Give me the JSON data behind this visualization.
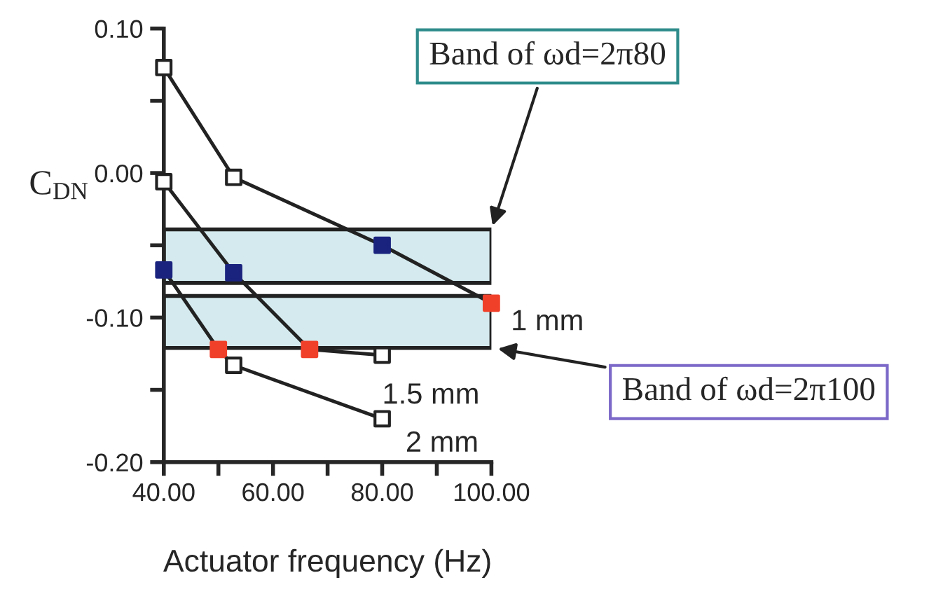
{
  "chart_data": {
    "type": "line",
    "xlabel": "Actuator frequency (Hz)",
    "ylabel": "C$_{DN}$",
    "xlim": [
      40,
      100
    ],
    "ylim": [
      -0.2,
      0.1
    ],
    "xticks": [
      {
        "value": 40,
        "label": "40.00"
      },
      {
        "value": 50,
        "label": null
      },
      {
        "value": 60,
        "label": "60.00"
      },
      {
        "value": 70,
        "label": null
      },
      {
        "value": 80,
        "label": "80.00"
      },
      {
        "value": 90,
        "label": null
      },
      {
        "value": 100,
        "label": "100.00"
      }
    ],
    "yticks": [
      {
        "value": -0.2,
        "label": "-0.20"
      },
      {
        "value": -0.15,
        "label": null
      },
      {
        "value": -0.1,
        "label": "-0.10"
      },
      {
        "value": -0.05,
        "label": null
      },
      {
        "value": 0,
        "label": "0.00"
      },
      {
        "value": 0.05,
        "label": null
      },
      {
        "value": 0.1,
        "label": "0.10"
      }
    ],
    "marker": "square",
    "line_style": "solid",
    "grid": false,
    "legend": false,
    "series": [
      {
        "name": "1 mm",
        "color": "#222222",
        "x": [
          40,
          52.8,
          80,
          100
        ],
        "values": [
          0.073,
          -0.003,
          -0.05,
          -0.09
        ],
        "colors": [
          "#ffffff",
          "#ffffff",
          "#1a237e",
          "#f0402a"
        ]
      },
      {
        "name": "1.5 mm",
        "color": "#222222",
        "x": [
          40,
          52.8,
          66.7,
          80
        ],
        "values": [
          -0.006,
          -0.069,
          -0.122,
          -0.126
        ],
        "colors": [
          "#ffffff",
          "#1a237e",
          "#f0402a",
          "#ffffff"
        ]
      },
      {
        "name": "2 mm",
        "color": "#222222",
        "x": [
          40,
          50,
          52.8,
          80
        ],
        "values": [
          -0.067,
          -0.122,
          -0.133,
          -0.17
        ],
        "colors": [
          "#1a237e",
          "#f0402a",
          "#ffffff",
          "#ffffff"
        ]
      }
    ],
    "bands": [
      {
        "axis": "y",
        "from": -0.076,
        "to": -0.039,
        "label": "Band of ωd=2π80",
        "color": "#d4eaee"
      },
      {
        "axis": "y",
        "from": -0.121,
        "to": -0.085,
        "label": "Band of ωd=2π100",
        "color": "#d4eaee"
      }
    ]
  }
}
